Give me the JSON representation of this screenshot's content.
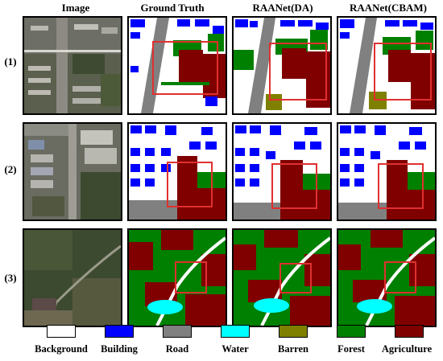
{
  "columns": {
    "image": "Image",
    "ground_truth": "Ground Truth",
    "raa_da": "RAANet(DA)",
    "raa_cbam": "RAANet(CBAM)"
  },
  "rows": [
    "(1)",
    "(2)",
    "(3)"
  ],
  "legend": [
    {
      "label": "Background",
      "color": "#ffffff"
    },
    {
      "label": "Building",
      "color": "#0000ff"
    },
    {
      "label": "Road",
      "color": "#808080"
    },
    {
      "label": "Water",
      "color": "#00ffff"
    },
    {
      "label": "Barren",
      "color": "#808000"
    },
    {
      "label": "Forest",
      "color": "#008000"
    },
    {
      "label": "Agriculture",
      "color": "#800000"
    }
  ],
  "highlight_color": "#e03030"
}
